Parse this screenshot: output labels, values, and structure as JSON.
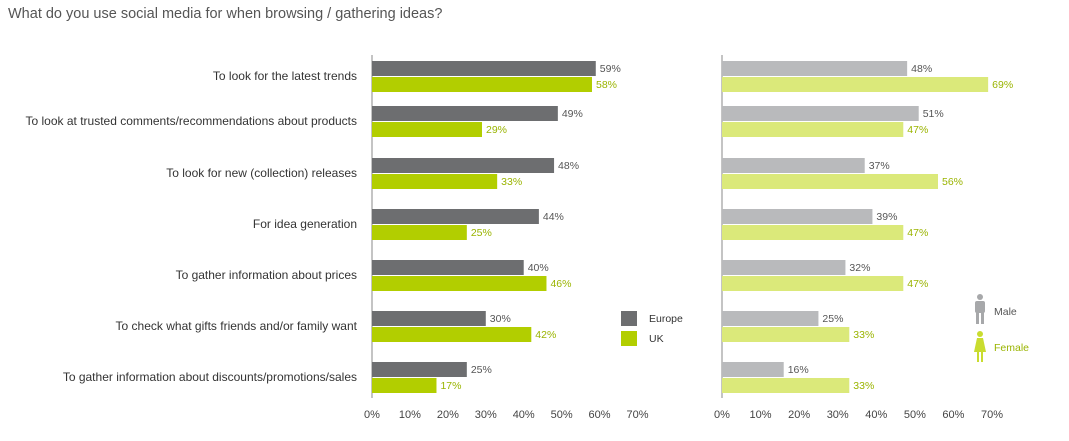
{
  "title": "What do you use social media for when browsing / gathering ideas?",
  "chart_data": [
    {
      "type": "bar",
      "orientation": "horizontal",
      "categories": [
        "To look for the latest trends",
        "To look at trusted comments/recommendations about products",
        "To look for new (collection) releases",
        "For idea generation",
        "To gather information about prices",
        "To check what gifts friends and/or family want",
        "To gather information about discounts/promotions/sales"
      ],
      "series": [
        {
          "name": "Europe",
          "values": [
            59,
            49,
            48,
            44,
            40,
            30,
            25
          ],
          "color": "#6d6e70",
          "label_color": "#555555"
        },
        {
          "name": "UK",
          "values": [
            58,
            29,
            33,
            25,
            46,
            42,
            17
          ],
          "color": "#b2ce00",
          "label_color": "#9ab400"
        }
      ],
      "xlim": [
        0,
        70
      ],
      "xticks": [
        "0%",
        "10%",
        "20%",
        "30%",
        "40%",
        "50%",
        "60%",
        "70%"
      ],
      "value_suffix": "%",
      "legend_position": "right",
      "legend_icon": "square"
    },
    {
      "type": "bar",
      "orientation": "horizontal",
      "series": [
        {
          "name": "Male",
          "values": [
            48,
            51,
            37,
            39,
            32,
            25,
            16
          ],
          "color": "#b9babc",
          "label_color": "#555555",
          "icon": "male-person-icon"
        },
        {
          "name": "Female",
          "values": [
            69,
            47,
            56,
            47,
            47,
            33,
            33
          ],
          "color": "#dbe97a",
          "label_color": "#9ab400",
          "icon": "female-person-icon"
        }
      ],
      "xlim": [
        0,
        70
      ],
      "xticks": [
        "0%",
        "10%",
        "20%",
        "30%",
        "40%",
        "50%",
        "60%",
        "70%"
      ],
      "value_suffix": "%",
      "legend_position": "right",
      "legend_icon": "person"
    }
  ]
}
